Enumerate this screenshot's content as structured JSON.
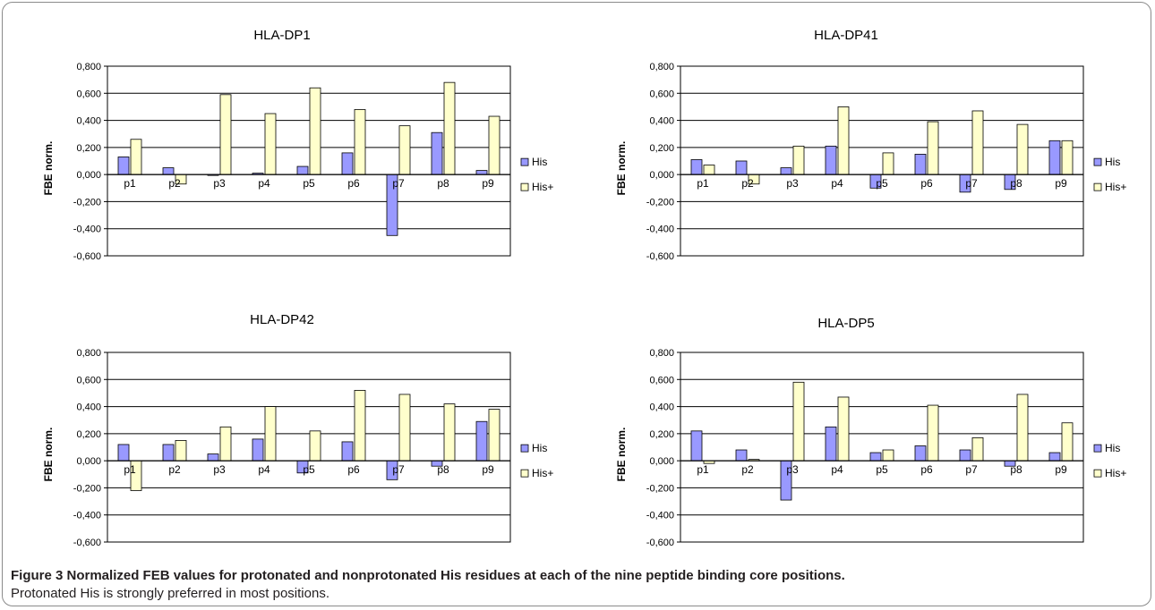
{
  "chart_data": [
    {
      "type": "bar",
      "title": "HLA-DP1",
      "ylabel": "FBE norm.",
      "categories": [
        "p1",
        "p2",
        "p3",
        "p4",
        "p5",
        "p6",
        "p7",
        "p8",
        "p9"
      ],
      "ylim": [
        -0.6,
        0.8
      ],
      "yticks": [
        "-0,600",
        "-0,400",
        "-0,200",
        "0,000",
        "0,200",
        "0,400",
        "0,600",
        "0,800"
      ],
      "grid": true,
      "legend": "right",
      "series": [
        {
          "name": "His",
          "color": "#9999ff",
          "values": [
            0.13,
            0.05,
            0.0,
            0.01,
            0.06,
            0.16,
            -0.45,
            0.31,
            0.03
          ]
        },
        {
          "name": "His+",
          "color": "#ffffcc",
          "values": [
            0.26,
            -0.07,
            0.59,
            0.45,
            0.64,
            0.48,
            0.36,
            0.68,
            0.43
          ]
        }
      ]
    },
    {
      "type": "bar",
      "title": "HLA-DP41",
      "ylabel": "FBE norm.",
      "categories": [
        "p1",
        "p2",
        "p3",
        "p4",
        "p5",
        "p6",
        "p7",
        "p8",
        "p9"
      ],
      "ylim": [
        -0.6,
        0.8
      ],
      "yticks": [
        "-0,600",
        "-0,400",
        "-0,200",
        "0,000",
        "0,200",
        "0,400",
        "0,600",
        "0,800"
      ],
      "grid": true,
      "legend": "right",
      "series": [
        {
          "name": "His",
          "color": "#9999ff",
          "values": [
            0.11,
            0.1,
            0.05,
            0.21,
            -0.1,
            0.15,
            -0.13,
            -0.11,
            0.25
          ]
        },
        {
          "name": "His+",
          "color": "#ffffcc",
          "values": [
            0.07,
            -0.07,
            0.21,
            0.5,
            0.16,
            0.39,
            0.47,
            0.37,
            0.25
          ]
        }
      ]
    },
    {
      "type": "bar",
      "title": "HLA-DP42",
      "ylabel": "FBE norm.",
      "categories": [
        "p1",
        "p2",
        "p3",
        "p4",
        "p5",
        "p6",
        "p7",
        "p8",
        "p9"
      ],
      "ylim": [
        -0.6,
        0.8
      ],
      "yticks": [
        "-0,600",
        "-0,400",
        "-0,200",
        "0,000",
        "0,200",
        "0,400",
        "0,600",
        "0,800"
      ],
      "grid": true,
      "legend": "right",
      "series": [
        {
          "name": "His",
          "color": "#9999ff",
          "values": [
            0.12,
            0.12,
            0.05,
            0.16,
            -0.09,
            0.14,
            -0.14,
            -0.04,
            0.29
          ]
        },
        {
          "name": "His+",
          "color": "#ffffcc",
          "values": [
            -0.22,
            0.15,
            0.25,
            0.4,
            0.22,
            0.52,
            0.49,
            0.42,
            0.38
          ]
        }
      ]
    },
    {
      "type": "bar",
      "title": "HLA-DP5",
      "ylabel": "FBE norm.",
      "categories": [
        "p1",
        "p2",
        "p3",
        "p4",
        "p5",
        "p6",
        "p7",
        "p8",
        "p9"
      ],
      "ylim": [
        -0.6,
        0.8
      ],
      "yticks": [
        "-0,600",
        "-0,400",
        "-0,200",
        "0,000",
        "0,200",
        "0,400",
        "0,600",
        "0,800"
      ],
      "grid": true,
      "legend": "right",
      "series": [
        {
          "name": "His",
          "color": "#9999ff",
          "values": [
            0.22,
            0.08,
            -0.29,
            0.25,
            0.06,
            0.11,
            0.08,
            -0.04,
            0.06
          ]
        },
        {
          "name": "His+",
          "color": "#ffffcc",
          "values": [
            -0.02,
            0.01,
            0.58,
            0.47,
            0.08,
            0.41,
            0.17,
            0.49,
            0.28
          ]
        }
      ]
    }
  ],
  "caption": {
    "bold": "Figure 3 Normalized FEB values for protonated and nonprotonated His residues at each of the nine peptide binding core positions.",
    "text": "Protonated His is strongly preferred in most positions."
  }
}
